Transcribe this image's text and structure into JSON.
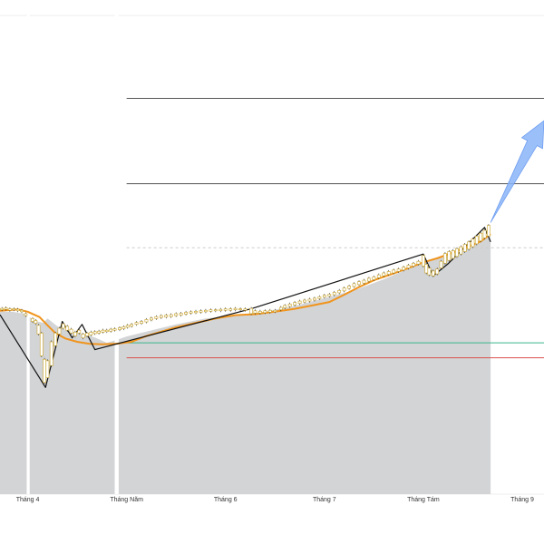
{
  "chart_data": {
    "type": "line",
    "title": "",
    "xlabel": "",
    "ylabel": "",
    "grid": true,
    "x_tick_labels": [
      {
        "label": "Tháng 4",
        "x": 4.0
      },
      {
        "label": "Tháng Năm",
        "x": 5.0
      },
      {
        "label": "Tháng 6",
        "x": 6.0
      },
      {
        "label": "Tháng 7",
        "x": 7.0
      },
      {
        "label": "Tháng Tám",
        "x": 8.0
      },
      {
        "label": "Tháng 9",
        "x": 9.0
      }
    ],
    "xlim": [
      3.72,
      9.22
    ],
    "ylim": [
      0,
      100
    ],
    "horizontal_levels": [
      {
        "name": "level-upper",
        "value": 81.6,
        "color": "#555555",
        "x_from": 5.0
      },
      {
        "name": "level-middle",
        "value": 64.0,
        "color": "#555555",
        "x_from": 5.0
      },
      {
        "name": "level-dashed",
        "value": 50.8,
        "color": "#cccccc",
        "x_from": 5.0,
        "dashed": true
      },
      {
        "name": "level-green",
        "value": 31.2,
        "color": "#3cb38a",
        "x_from": 5.0
      },
      {
        "name": "level-red",
        "value": 28.1,
        "color": "#d9534f",
        "x_from": 5.0
      }
    ],
    "shaded_area": {
      "color": "#d3d4d6",
      "points": [
        [
          3.72,
          37.6
        ],
        [
          3.84,
          37.6
        ],
        [
          3.96,
          37.2
        ],
        [
          4.08,
          35.7
        ],
        [
          4.16,
          35.3
        ],
        [
          4.2,
          36.2
        ],
        [
          4.3,
          34.6
        ],
        [
          4.42,
          33.5
        ],
        [
          4.55,
          33.1
        ],
        [
          4.68,
          32.3
        ],
        [
          4.8,
          31.2
        ],
        [
          4.9,
          31.8
        ],
        [
          5.0,
          32.5
        ],
        [
          5.2,
          33.5
        ],
        [
          5.5,
          35.0
        ],
        [
          5.8,
          36.2
        ],
        [
          6.1,
          36.9
        ],
        [
          6.4,
          37.6
        ],
        [
          6.7,
          38.8
        ],
        [
          7.0,
          40.4
        ],
        [
          7.3,
          42.0
        ],
        [
          7.6,
          44.3
        ],
        [
          7.9,
          46.9
        ],
        [
          8.1,
          48.5
        ],
        [
          8.3,
          50.1
        ],
        [
          8.55,
          51.9
        ],
        [
          8.68,
          53.1
        ]
      ],
      "gaps": [
        [
          3.99,
          4.02
        ],
        [
          4.88,
          4.92
        ]
      ]
    },
    "series": [
      {
        "type": "line",
        "color": "#f0941c",
        "values": [
          [
            3.72,
            37.8
          ],
          [
            3.9,
            38.1
          ],
          [
            4.0,
            37.6
          ],
          [
            4.12,
            36.5
          ],
          [
            4.2,
            34.8
          ],
          [
            4.28,
            33.2
          ],
          [
            4.38,
            32.1
          ],
          [
            4.5,
            31.4
          ],
          [
            4.62,
            31.0
          ],
          [
            4.75,
            30.9
          ],
          [
            4.9,
            31.0
          ],
          [
            5.05,
            31.4
          ],
          [
            5.2,
            32.6
          ],
          [
            5.35,
            33.5
          ],
          [
            5.5,
            34.4
          ],
          [
            5.7,
            35.3
          ],
          [
            5.9,
            36.2
          ],
          [
            6.1,
            36.9
          ],
          [
            6.3,
            37.1
          ],
          [
            6.5,
            37.6
          ],
          [
            6.7,
            38.2
          ],
          [
            6.9,
            39.0
          ],
          [
            7.05,
            39.6
          ],
          [
            7.2,
            41.1
          ],
          [
            7.35,
            42.7
          ],
          [
            7.5,
            44.1
          ],
          [
            7.7,
            45.5
          ],
          [
            7.85,
            46.6
          ],
          [
            8.0,
            47.8
          ],
          [
            8.15,
            48.7
          ],
          [
            8.3,
            49.8
          ],
          [
            8.45,
            51.0
          ],
          [
            8.58,
            52.1
          ],
          [
            8.68,
            53.6
          ]
        ]
      },
      {
        "type": "line",
        "color": "#111111",
        "values": [
          [
            3.72,
            37.0
          ],
          [
            4.18,
            22.0
          ],
          [
            4.35,
            35.6
          ],
          [
            4.45,
            32.2
          ],
          [
            4.55,
            35.0
          ],
          [
            4.68,
            29.8
          ],
          [
            6.26,
            38.2
          ],
          [
            8.0,
            49.5
          ],
          [
            8.1,
            45.0
          ],
          [
            8.25,
            47.5
          ],
          [
            8.62,
            55.0
          ],
          [
            8.68,
            52.0
          ]
        ]
      }
    ],
    "candles": [
      [
        3.74,
        38.0,
        38.3
      ],
      [
        3.78,
        38.1,
        38.4
      ],
      [
        3.82,
        37.9,
        38.2
      ],
      [
        3.86,
        38.0,
        38.2
      ],
      [
        3.9,
        37.8,
        38.1
      ],
      [
        3.94,
        37.6,
        37.9
      ],
      [
        3.98,
        36.8,
        37.2
      ],
      [
        4.05,
        35.6,
        36.2
      ],
      [
        4.08,
        35.2,
        35.8
      ],
      [
        4.11,
        33.0,
        34.8
      ],
      [
        4.14,
        28.5,
        33.2
      ],
      [
        4.17,
        23.0,
        27.8
      ],
      [
        4.2,
        24.0,
        27.5
      ],
      [
        4.24,
        26.5,
        31.4
      ],
      [
        4.28,
        30.6,
        33.2
      ],
      [
        4.32,
        33.0,
        34.2
      ],
      [
        4.36,
        34.2,
        35.1
      ],
      [
        4.4,
        33.8,
        34.6
      ],
      [
        4.44,
        33.2,
        34.0
      ],
      [
        4.48,
        32.6,
        33.4
      ],
      [
        4.52,
        33.2,
        33.8
      ],
      [
        4.56,
        32.2,
        33.0
      ],
      [
        4.6,
        32.6,
        33.2
      ],
      [
        4.64,
        32.8,
        33.4
      ],
      [
        4.68,
        33.1,
        33.5
      ],
      [
        4.72,
        33.2,
        33.6
      ],
      [
        4.76,
        33.4,
        33.8
      ],
      [
        4.8,
        33.5,
        33.8
      ],
      [
        4.84,
        33.6,
        34.0
      ],
      [
        4.88,
        33.8,
        34.1
      ],
      [
        4.93,
        33.9,
        34.3
      ],
      [
        4.97,
        34.1,
        34.5
      ],
      [
        5.01,
        34.4,
        34.8
      ],
      [
        5.05,
        34.6,
        35.0
      ],
      [
        5.1,
        35.0,
        35.4
      ],
      [
        5.15,
        35.2,
        35.6
      ],
      [
        5.2,
        35.5,
        36.0
      ],
      [
        5.25,
        35.9,
        36.3
      ],
      [
        5.3,
        36.2,
        36.6
      ],
      [
        5.35,
        36.4,
        36.8
      ],
      [
        5.4,
        36.5,
        36.9
      ],
      [
        5.45,
        36.6,
        37.0
      ],
      [
        5.5,
        36.8,
        37.2
      ],
      [
        5.55,
        36.9,
        37.3
      ],
      [
        5.6,
        37.1,
        37.5
      ],
      [
        5.65,
        37.3,
        37.6
      ],
      [
        5.7,
        37.4,
        37.7
      ],
      [
        5.75,
        37.5,
        37.8
      ],
      [
        5.8,
        37.6,
        37.9
      ],
      [
        5.85,
        37.7,
        38.0
      ],
      [
        5.9,
        37.8,
        38.0
      ],
      [
        5.95,
        37.8,
        38.1
      ],
      [
        6.0,
        37.9,
        38.2
      ],
      [
        6.05,
        37.9,
        38.2
      ],
      [
        6.1,
        38.0,
        38.3
      ],
      [
        6.15,
        38.0,
        38.2
      ],
      [
        6.2,
        37.9,
        38.2
      ],
      [
        6.26,
        37.2,
        38.3
      ],
      [
        6.3,
        37.3,
        37.8
      ],
      [
        6.35,
        37.3,
        37.7
      ],
      [
        6.4,
        37.4,
        37.8
      ],
      [
        6.45,
        37.5,
        37.9
      ],
      [
        6.5,
        37.6,
        37.9
      ],
      [
        6.56,
        38.0,
        38.5
      ],
      [
        6.6,
        38.4,
        38.9
      ],
      [
        6.65,
        38.7,
        39.2
      ],
      [
        6.7,
        39.0,
        39.5
      ],
      [
        6.75,
        39.3,
        39.8
      ],
      [
        6.8,
        39.6,
        40.0
      ],
      [
        6.85,
        39.8,
        40.2
      ],
      [
        6.9,
        40.0,
        40.4
      ],
      [
        6.95,
        40.3,
        40.7
      ],
      [
        7.0,
        40.6,
        41.0
      ],
      [
        7.05,
        40.8,
        41.2
      ],
      [
        7.1,
        41.1,
        41.6
      ],
      [
        7.15,
        41.5,
        42.0
      ],
      [
        7.2,
        41.9,
        42.5
      ],
      [
        7.25,
        42.4,
        42.9
      ],
      [
        7.3,
        42.8,
        43.4
      ],
      [
        7.35,
        43.2,
        43.8
      ],
      [
        7.4,
        43.5,
        44.1
      ],
      [
        7.45,
        43.9,
        44.5
      ],
      [
        7.5,
        44.2,
        44.8
      ],
      [
        7.55,
        44.6,
        45.2
      ],
      [
        7.6,
        45.0,
        45.6
      ],
      [
        7.65,
        45.3,
        45.9
      ],
      [
        7.7,
        45.6,
        46.2
      ],
      [
        7.75,
        45.9,
        46.4
      ],
      [
        7.8,
        46.2,
        46.8
      ],
      [
        7.85,
        46.6,
        47.2
      ],
      [
        7.9,
        47.0,
        47.6
      ],
      [
        7.95,
        47.4,
        48.0
      ],
      [
        8.0,
        47.0,
        49.2
      ],
      [
        8.03,
        45.6,
        47.4
      ],
      [
        8.06,
        45.2,
        46.6
      ],
      [
        8.1,
        45.0,
        46.0
      ],
      [
        8.14,
        45.4,
        46.4
      ],
      [
        8.18,
        46.6,
        48.0
      ],
      [
        8.22,
        47.6,
        49.6
      ],
      [
        8.26,
        48.2,
        50.0
      ],
      [
        8.3,
        48.6,
        50.2
      ],
      [
        8.34,
        49.0,
        50.6
      ],
      [
        8.38,
        49.5,
        51.0
      ],
      [
        8.42,
        50.0,
        51.5
      ],
      [
        8.46,
        50.5,
        52.0
      ],
      [
        8.5,
        51.0,
        52.6
      ],
      [
        8.54,
        51.6,
        53.2
      ],
      [
        8.58,
        52.2,
        53.8
      ],
      [
        8.62,
        52.8,
        54.4
      ],
      [
        8.66,
        53.2,
        55.4
      ]
    ],
    "annotation_arrow": {
      "color": "#8ab4f8",
      "from": [
        8.68,
        56.0
      ],
      "to": [
        9.22,
        77.0
      ]
    }
  }
}
